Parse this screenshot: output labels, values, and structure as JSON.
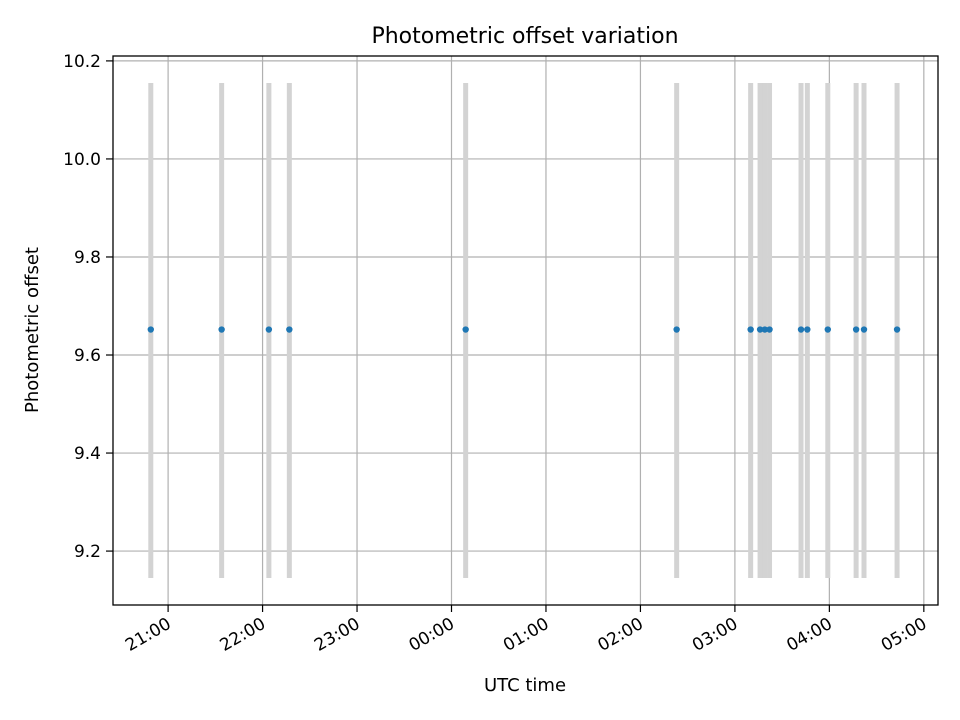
{
  "chart_data": {
    "type": "scatter",
    "title": "Photometric offset variation",
    "xlabel": "UTC time",
    "ylabel": "Photometric offset",
    "grid": true,
    "x_ticks": [
      "21:00",
      "22:00",
      "23:00",
      "00:00",
      "01:00",
      "02:00",
      "03:00",
      "04:00",
      "05:00"
    ],
    "y_ticks": [
      "9.2",
      "9.4",
      "9.6",
      "9.8",
      "10.0",
      "10.2"
    ],
    "x_range": [
      "20:25",
      "05:09"
    ],
    "ylim": [
      9.09,
      10.21
    ],
    "band_range": [
      9.145,
      10.155
    ],
    "points": [
      {
        "x": "20:49",
        "y": 9.652
      },
      {
        "x": "21:34",
        "y": 9.652
      },
      {
        "x": "22:04",
        "y": 9.652
      },
      {
        "x": "22:17",
        "y": 9.652
      },
      {
        "x": "00:09",
        "y": 9.652
      },
      {
        "x": "02:23",
        "y": 9.652
      },
      {
        "x": "03:10",
        "y": 9.652
      },
      {
        "x": "03:16",
        "y": 9.652
      },
      {
        "x": "03:19",
        "y": 9.652
      },
      {
        "x": "03:22",
        "y": 9.652
      },
      {
        "x": "03:42",
        "y": 9.652
      },
      {
        "x": "03:46",
        "y": 9.652
      },
      {
        "x": "03:59",
        "y": 9.652
      },
      {
        "x": "04:17",
        "y": 9.652
      },
      {
        "x": "04:22",
        "y": 9.652
      },
      {
        "x": "04:43",
        "y": 9.652
      }
    ],
    "colors": {
      "points": "#1f77b4",
      "bands": "#d3d3d3",
      "grid": "#b0b0b0"
    }
  }
}
